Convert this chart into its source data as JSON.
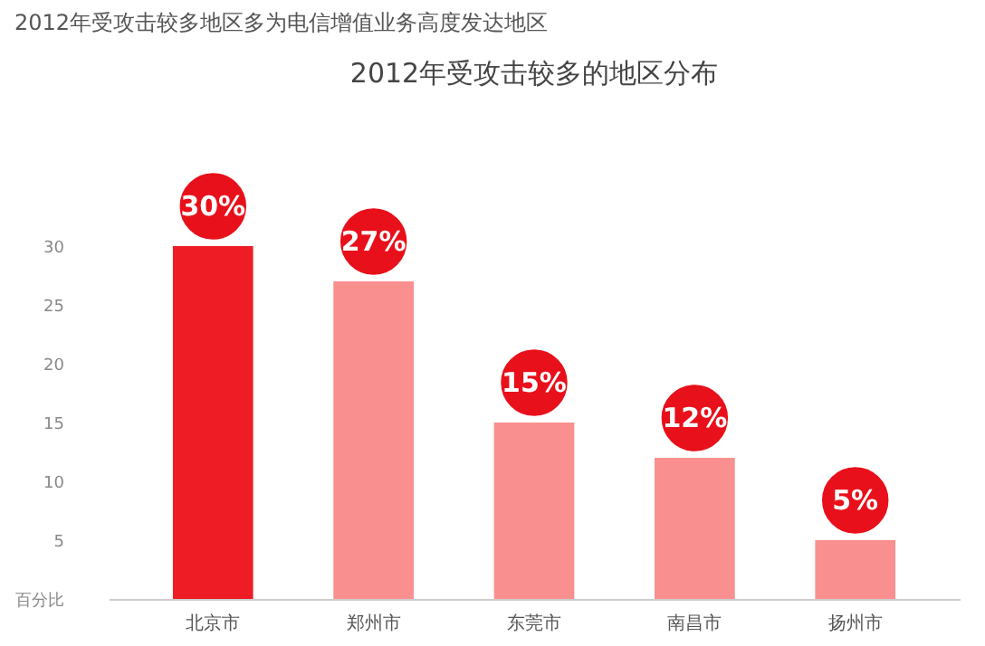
{
  "chart_data": {
    "type": "bar",
    "title": "2012年受攻击较多的地区分布",
    "subtitle": "2012年受攻击较多地区多为电信增值业务高度发达地区",
    "categories": [
      "北京市",
      "郑州市",
      "东莞市",
      "南昌市",
      "扬州市"
    ],
    "values": [
      30,
      27,
      15,
      12,
      5
    ],
    "colors": [
      "#ee1c25",
      "#f98f8f",
      "#f98f8f",
      "#f98f8f",
      "#f98f8f"
    ],
    "value_labels": [
      "30%",
      "27%",
      "15%",
      "12%",
      "5%"
    ],
    "ylim": [
      0,
      30
    ],
    "yticks": [
      {
        "value": 0,
        "label": "百分比"
      },
      5,
      10,
      15,
      20,
      25,
      30
    ],
    "grid": false
  }
}
